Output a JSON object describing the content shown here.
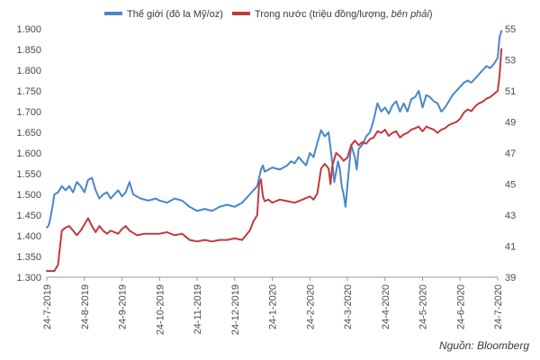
{
  "chart_data": {
    "type": "line",
    "title": "",
    "source": "Nguồn: Bloomberg",
    "legend_placement": "top",
    "grid": false,
    "dual_axis": true,
    "x_ticks": [
      "24-7-2019",
      "24-8-2019",
      "24-9-2019",
      "24-10-2019",
      "24-11-2019",
      "24-12-2019",
      "24-1-2020",
      "24-2-2020",
      "24-3-2020",
      "24-4-2020",
      "24-5-2020",
      "24-6-2020",
      "24-7-2020"
    ],
    "y_left": {
      "ticks": [
        "1.900",
        "1.850",
        "1.800",
        "1.750",
        "1.700",
        "1.650",
        "1.600",
        "1.550",
        "1.500",
        "1.450",
        "1.400",
        "1.350",
        "1.300"
      ],
      "ylim": [
        1300,
        1900
      ]
    },
    "y_right": {
      "ticks": [
        "55",
        "53",
        "51",
        "49",
        "47",
        "45",
        "43",
        "41",
        "39"
      ],
      "ylim": [
        39,
        55
      ]
    },
    "series": [
      {
        "name": "Thế giới (đô la Mỹ/oz)",
        "legend_parts": [
          {
            "text": "Thế giới (đô la Mỹ/oz)",
            "italic": false
          }
        ],
        "axis": "left",
        "color": "#4a86c8",
        "points": [
          [
            0,
            1420
          ],
          [
            0.05,
            1425
          ],
          [
            0.1,
            1445
          ],
          [
            0.17,
            1480
          ],
          [
            0.2,
            1500
          ],
          [
            0.3,
            1505
          ],
          [
            0.4,
            1520
          ],
          [
            0.5,
            1510
          ],
          [
            0.6,
            1520
          ],
          [
            0.7,
            1505
          ],
          [
            0.8,
            1530
          ],
          [
            0.9,
            1520
          ],
          [
            1.0,
            1505
          ],
          [
            1.1,
            1535
          ],
          [
            1.2,
            1540
          ],
          [
            1.25,
            1525
          ],
          [
            1.3,
            1510
          ],
          [
            1.4,
            1490
          ],
          [
            1.5,
            1500
          ],
          [
            1.6,
            1505
          ],
          [
            1.7,
            1490
          ],
          [
            1.8,
            1500
          ],
          [
            1.9,
            1510
          ],
          [
            2.0,
            1495
          ],
          [
            2.1,
            1505
          ],
          [
            2.2,
            1530
          ],
          [
            2.3,
            1500
          ],
          [
            2.5,
            1490
          ],
          [
            2.7,
            1485
          ],
          [
            2.9,
            1490
          ],
          [
            3.0,
            1485
          ],
          [
            3.2,
            1480
          ],
          [
            3.4,
            1490
          ],
          [
            3.6,
            1485
          ],
          [
            3.8,
            1470
          ],
          [
            4.0,
            1460
          ],
          [
            4.2,
            1465
          ],
          [
            4.4,
            1460
          ],
          [
            4.6,
            1470
          ],
          [
            4.8,
            1475
          ],
          [
            5.0,
            1470
          ],
          [
            5.2,
            1480
          ],
          [
            5.4,
            1500
          ],
          [
            5.5,
            1510
          ],
          [
            5.6,
            1520
          ],
          [
            5.7,
            1560
          ],
          [
            5.75,
            1570
          ],
          [
            5.8,
            1555
          ],
          [
            6.0,
            1565
          ],
          [
            6.2,
            1560
          ],
          [
            6.4,
            1570
          ],
          [
            6.5,
            1580
          ],
          [
            6.6,
            1575
          ],
          [
            6.7,
            1590
          ],
          [
            6.8,
            1580
          ],
          [
            6.9,
            1570
          ],
          [
            7.0,
            1600
          ],
          [
            7.1,
            1590
          ],
          [
            7.2,
            1625
          ],
          [
            7.3,
            1655
          ],
          [
            7.4,
            1640
          ],
          [
            7.5,
            1650
          ],
          [
            7.6,
            1575
          ],
          [
            7.65,
            1530
          ],
          [
            7.75,
            1580
          ],
          [
            7.8,
            1560
          ],
          [
            7.85,
            1520
          ],
          [
            7.9,
            1500
          ],
          [
            7.95,
            1470
          ],
          [
            8.0,
            1520
          ],
          [
            8.1,
            1620
          ],
          [
            8.2,
            1590
          ],
          [
            8.25,
            1560
          ],
          [
            8.3,
            1610
          ],
          [
            8.4,
            1620
          ],
          [
            8.5,
            1640
          ],
          [
            8.6,
            1650
          ],
          [
            8.7,
            1680
          ],
          [
            8.75,
            1700
          ],
          [
            8.8,
            1720
          ],
          [
            8.9,
            1700
          ],
          [
            9.0,
            1710
          ],
          [
            9.1,
            1695
          ],
          [
            9.2,
            1715
          ],
          [
            9.3,
            1725
          ],
          [
            9.4,
            1700
          ],
          [
            9.5,
            1720
          ],
          [
            9.6,
            1700
          ],
          [
            9.7,
            1730
          ],
          [
            9.8,
            1735
          ],
          [
            9.9,
            1750
          ],
          [
            10.0,
            1710
          ],
          [
            10.1,
            1740
          ],
          [
            10.2,
            1735
          ],
          [
            10.3,
            1725
          ],
          [
            10.4,
            1720
          ],
          [
            10.5,
            1700
          ],
          [
            10.6,
            1710
          ],
          [
            10.7,
            1725
          ],
          [
            10.8,
            1740
          ],
          [
            10.9,
            1750
          ],
          [
            11.0,
            1760
          ],
          [
            11.1,
            1770
          ],
          [
            11.2,
            1775
          ],
          [
            11.3,
            1770
          ],
          [
            11.4,
            1780
          ],
          [
            11.5,
            1790
          ],
          [
            11.6,
            1800
          ],
          [
            11.7,
            1810
          ],
          [
            11.8,
            1805
          ],
          [
            11.9,
            1815
          ],
          [
            12.0,
            1830
          ],
          [
            12.05,
            1880
          ],
          [
            12.1,
            1895
          ]
        ]
      },
      {
        "name": "Trong nước (triệu đồng/lượng, bên phải)",
        "legend_parts": [
          {
            "text": "Trong nước (triệu đồng/lượng, ",
            "italic": false
          },
          {
            "text": "bên phải",
            "italic": true
          },
          {
            "text": ")",
            "italic": false
          }
        ],
        "axis": "right",
        "color": "#c0393c",
        "points": [
          [
            0,
            39.4
          ],
          [
            0.1,
            39.4
          ],
          [
            0.2,
            39.4
          ],
          [
            0.3,
            39.8
          ],
          [
            0.4,
            42.0
          ],
          [
            0.5,
            42.2
          ],
          [
            0.6,
            42.3
          ],
          [
            0.7,
            42.0
          ],
          [
            0.8,
            41.7
          ],
          [
            0.9,
            42.0
          ],
          [
            1.0,
            42.4
          ],
          [
            1.1,
            42.8
          ],
          [
            1.2,
            42.3
          ],
          [
            1.3,
            41.9
          ],
          [
            1.4,
            42.3
          ],
          [
            1.5,
            42.0
          ],
          [
            1.6,
            41.8
          ],
          [
            1.7,
            42.0
          ],
          [
            1.8,
            41.9
          ],
          [
            1.9,
            41.8
          ],
          [
            2.0,
            42.1
          ],
          [
            2.1,
            42.3
          ],
          [
            2.2,
            42.0
          ],
          [
            2.4,
            41.7
          ],
          [
            2.6,
            41.8
          ],
          [
            2.8,
            41.8
          ],
          [
            3.0,
            41.8
          ],
          [
            3.2,
            41.9
          ],
          [
            3.4,
            41.7
          ],
          [
            3.6,
            41.8
          ],
          [
            3.8,
            41.4
          ],
          [
            4.0,
            41.3
          ],
          [
            4.2,
            41.4
          ],
          [
            4.4,
            41.3
          ],
          [
            4.6,
            41.4
          ],
          [
            4.8,
            41.4
          ],
          [
            5.0,
            41.5
          ],
          [
            5.2,
            41.4
          ],
          [
            5.4,
            42.0
          ],
          [
            5.5,
            42.6
          ],
          [
            5.6,
            43.0
          ],
          [
            5.65,
            45.0
          ],
          [
            5.7,
            45.3
          ],
          [
            5.75,
            44.2
          ],
          [
            5.8,
            43.9
          ],
          [
            5.9,
            44.0
          ],
          [
            6.0,
            43.8
          ],
          [
            6.2,
            44.0
          ],
          [
            6.4,
            43.9
          ],
          [
            6.6,
            43.8
          ],
          [
            6.8,
            44.0
          ],
          [
            7.0,
            44.2
          ],
          [
            7.1,
            44.0
          ],
          [
            7.2,
            44.4
          ],
          [
            7.3,
            46.0
          ],
          [
            7.4,
            46.3
          ],
          [
            7.5,
            46.0
          ],
          [
            7.55,
            45.0
          ],
          [
            7.6,
            46.2
          ],
          [
            7.7,
            47.0
          ],
          [
            7.8,
            46.8
          ],
          [
            7.9,
            46.5
          ],
          [
            8.0,
            46.7
          ],
          [
            8.1,
            47.5
          ],
          [
            8.2,
            47.8
          ],
          [
            8.3,
            47.5
          ],
          [
            8.4,
            47.7
          ],
          [
            8.5,
            47.6
          ],
          [
            8.6,
            47.9
          ],
          [
            8.7,
            48.0
          ],
          [
            8.8,
            48.4
          ],
          [
            8.9,
            48.3
          ],
          [
            9.0,
            48.5
          ],
          [
            9.1,
            48.1
          ],
          [
            9.2,
            48.3
          ],
          [
            9.3,
            48.4
          ],
          [
            9.4,
            48.0
          ],
          [
            9.5,
            48.2
          ],
          [
            9.6,
            48.3
          ],
          [
            9.7,
            48.5
          ],
          [
            9.8,
            48.6
          ],
          [
            9.9,
            48.7
          ],
          [
            10.0,
            48.4
          ],
          [
            10.1,
            48.7
          ],
          [
            10.2,
            48.6
          ],
          [
            10.3,
            48.5
          ],
          [
            10.4,
            48.3
          ],
          [
            10.5,
            48.5
          ],
          [
            10.6,
            48.6
          ],
          [
            10.7,
            48.8
          ],
          [
            10.8,
            48.9
          ],
          [
            10.9,
            49.0
          ],
          [
            11.0,
            49.2
          ],
          [
            11.1,
            49.6
          ],
          [
            11.2,
            49.8
          ],
          [
            11.3,
            49.7
          ],
          [
            11.4,
            50.0
          ],
          [
            11.5,
            50.2
          ],
          [
            11.6,
            50.3
          ],
          [
            11.7,
            50.5
          ],
          [
            11.8,
            50.6
          ],
          [
            11.9,
            50.8
          ],
          [
            12.0,
            51.0
          ],
          [
            12.05,
            52.0
          ],
          [
            12.1,
            53.7
          ]
        ]
      }
    ]
  }
}
